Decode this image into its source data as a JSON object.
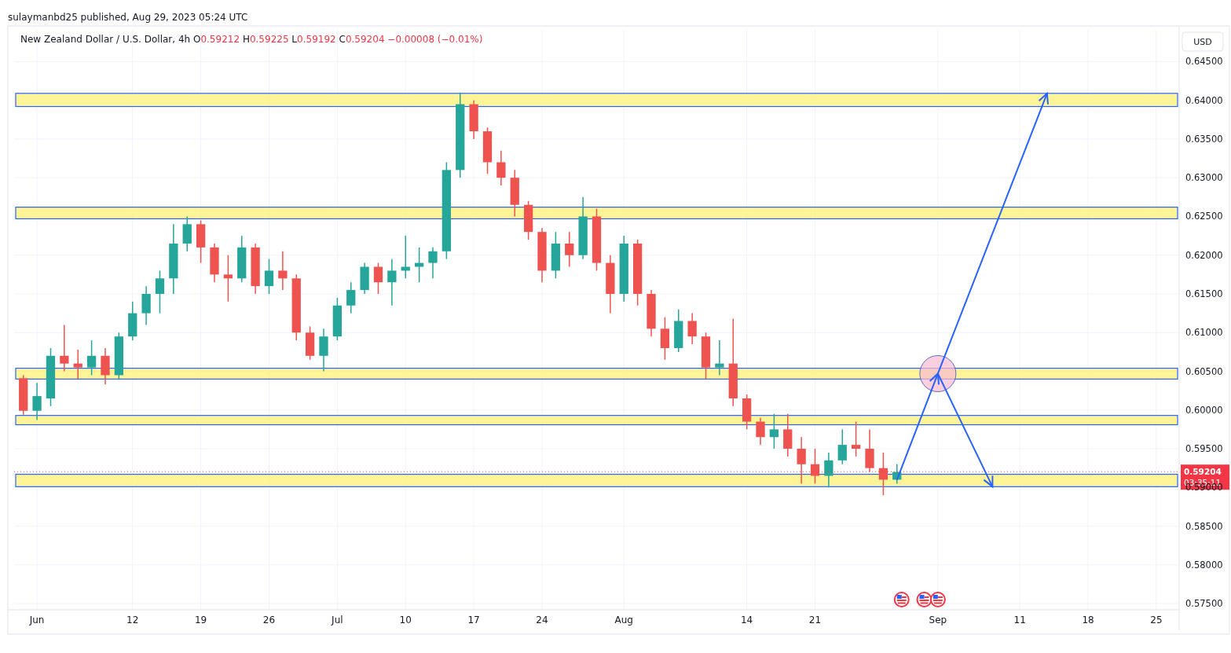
{
  "chart_data": {
    "type": "candlestick",
    "title": "New Zealand Dollar / U.S. Dollar, 4h",
    "subtitle": "O0.59212 H0.59225 L0.59192 C0.59204 −0.00008 (−0.01%)",
    "annotations": [
      "sulaymanbd25 published, Aug 29, 2023 05:24 UTC",
      "USD",
      "03:35:11"
    ],
    "categories": [
      null,
      "Jun",
      null,
      null,
      null,
      null,
      null,
      null,
      "12",
      null,
      null,
      null,
      null,
      "19",
      null,
      null,
      null,
      null,
      "26",
      null,
      null,
      null,
      null,
      "Jul",
      null,
      null,
      null,
      null,
      "10",
      null,
      null,
      null,
      null,
      "17",
      null,
      null,
      null,
      null,
      "24",
      null,
      null,
      null,
      null,
      null,
      "Aug",
      null,
      null,
      null,
      null,
      null,
      null,
      null,
      null,
      "14",
      null,
      null,
      null,
      null,
      "21",
      null,
      null,
      null,
      null,
      null,
      null,
      null,
      null,
      "Sep",
      null,
      null,
      null,
      null,
      null,
      "11",
      null,
      null,
      null,
      null,
      "18",
      null,
      null,
      null,
      null,
      "25",
      null
    ],
    "ohlc": [
      [
        0.6041,
        0.6045,
        0.5994,
        0.5999
      ],
      [
        0.5999,
        0.6035,
        0.5987,
        0.6018
      ],
      [
        0.6015,
        0.608,
        0.6005,
        0.607
      ],
      [
        0.607,
        0.611,
        0.605,
        0.606
      ],
      [
        0.606,
        0.6078,
        0.604,
        0.6055
      ],
      [
        0.6055,
        0.609,
        0.6045,
        0.607
      ],
      [
        0.607,
        0.608,
        0.6033,
        0.6045
      ],
      [
        0.6045,
        0.61,
        0.604,
        0.6095
      ],
      [
        0.6095,
        0.614,
        0.609,
        0.6125
      ],
      [
        0.6125,
        0.616,
        0.611,
        0.615
      ],
      [
        0.615,
        0.618,
        0.6125,
        0.617
      ],
      [
        0.617,
        0.624,
        0.615,
        0.6215
      ],
      [
        0.6215,
        0.625,
        0.6205,
        0.624
      ],
      [
        0.624,
        0.6245,
        0.619,
        0.621
      ],
      [
        0.621,
        0.6215,
        0.6165,
        0.6175
      ],
      [
        0.6175,
        0.62,
        0.614,
        0.617
      ],
      [
        0.617,
        0.6225,
        0.6165,
        0.621
      ],
      [
        0.621,
        0.6215,
        0.615,
        0.616
      ],
      [
        0.616,
        0.6195,
        0.615,
        0.618
      ],
      [
        0.618,
        0.6205,
        0.6155,
        0.617
      ],
      [
        0.617,
        0.6175,
        0.609,
        0.61
      ],
      [
        0.61,
        0.6108,
        0.6065,
        0.607
      ],
      [
        0.607,
        0.6105,
        0.605,
        0.6095
      ],
      [
        0.6095,
        0.6145,
        0.609,
        0.6135
      ],
      [
        0.6135,
        0.6165,
        0.6125,
        0.6155
      ],
      [
        0.6155,
        0.619,
        0.615,
        0.6185
      ],
      [
        0.6185,
        0.619,
        0.615,
        0.6165
      ],
      [
        0.6165,
        0.6195,
        0.6135,
        0.618
      ],
      [
        0.618,
        0.6225,
        0.617,
        0.6185
      ],
      [
        0.6185,
        0.621,
        0.6165,
        0.619
      ],
      [
        0.619,
        0.621,
        0.617,
        0.6205
      ],
      [
        0.6205,
        0.632,
        0.6195,
        0.631
      ],
      [
        0.631,
        0.641,
        0.63,
        0.6395
      ],
      [
        0.6395,
        0.64,
        0.635,
        0.636
      ],
      [
        0.636,
        0.6365,
        0.6305,
        0.632
      ],
      [
        0.632,
        0.6335,
        0.629,
        0.63
      ],
      [
        0.63,
        0.631,
        0.625,
        0.6265
      ],
      [
        0.6265,
        0.627,
        0.622,
        0.623
      ],
      [
        0.623,
        0.6235,
        0.6165,
        0.618
      ],
      [
        0.618,
        0.623,
        0.617,
        0.6215
      ],
      [
        0.6215,
        0.623,
        0.6185,
        0.62
      ],
      [
        0.62,
        0.6275,
        0.6195,
        0.625
      ],
      [
        0.625,
        0.626,
        0.618,
        0.619
      ],
      [
        0.619,
        0.62,
        0.6125,
        0.615
      ],
      [
        0.615,
        0.6225,
        0.614,
        0.6215
      ],
      [
        0.6215,
        0.622,
        0.6135,
        0.615
      ],
      [
        0.615,
        0.6155,
        0.6095,
        0.6105
      ],
      [
        0.6105,
        0.612,
        0.6065,
        0.608
      ],
      [
        0.608,
        0.613,
        0.6075,
        0.6115
      ],
      [
        0.6115,
        0.6125,
        0.6085,
        0.6095
      ],
      [
        0.6095,
        0.61,
        0.604,
        0.6055
      ],
      [
        0.6055,
        0.609,
        0.6045,
        0.606
      ],
      [
        0.606,
        0.6118,
        0.6005,
        0.6015
      ],
      [
        0.6015,
        0.602,
        0.5975,
        0.5985
      ],
      [
        0.5985,
        0.599,
        0.5955,
        0.5965
      ],
      [
        0.5965,
        0.5995,
        0.595,
        0.5975
      ],
      [
        0.5975,
        0.5995,
        0.594,
        0.595
      ],
      [
        0.595,
        0.5965,
        0.5905,
        0.593
      ],
      [
        0.593,
        0.595,
        0.5905,
        0.5915
      ],
      [
        0.5915,
        0.5945,
        0.59,
        0.5935
      ],
      [
        0.5935,
        0.5975,
        0.593,
        0.5955
      ],
      [
        0.5955,
        0.5985,
        0.594,
        0.595
      ],
      [
        0.595,
        0.5975,
        0.592,
        0.5925
      ],
      [
        0.5925,
        0.5945,
        0.589,
        0.591
      ],
      [
        0.591,
        0.593,
        0.5905,
        0.592
      ],
      null,
      null,
      null,
      null,
      null,
      null,
      null,
      null,
      null,
      null,
      null,
      null,
      null,
      null,
      null,
      null,
      null,
      null,
      null,
      null
    ],
    "ylim": [
      0.5742,
      0.6491
    ],
    "yticks": [
      {
        "value": 0.575,
        "label": "0.57500"
      },
      {
        "value": 0.58,
        "label": "0.58000"
      },
      {
        "value": 0.585,
        "label": "0.58500"
      },
      {
        "value": 0.59,
        "label": "0.59000"
      },
      {
        "value": 0.595,
        "label": "0.59500"
      },
      {
        "value": 0.6,
        "label": "0.60000"
      },
      {
        "value": 0.605,
        "label": "0.60500"
      },
      {
        "value": 0.61,
        "label": "0.61000"
      },
      {
        "value": 0.615,
        "label": "0.61500"
      },
      {
        "value": 0.62,
        "label": "0.62000"
      },
      {
        "value": 0.625,
        "label": "0.62500"
      },
      {
        "value": 0.63,
        "label": "0.63000"
      },
      {
        "value": 0.635,
        "label": "0.63500"
      },
      {
        "value": 0.64,
        "label": "0.64000"
      },
      {
        "value": 0.645,
        "label": "0.64500"
      }
    ],
    "bands": [
      {
        "axis": "y",
        "from": 0.6392,
        "to": 0.6409,
        "color": "#fff176"
      },
      {
        "axis": "y",
        "from": 0.6247,
        "to": 0.6262,
        "color": "#fff176"
      },
      {
        "axis": "y",
        "from": 0.604,
        "to": 0.6054,
        "color": "#fff176"
      },
      {
        "axis": "y",
        "from": 0.5981,
        "to": 0.5993,
        "color": "#fff176"
      },
      {
        "axis": "y",
        "from": 0.5901,
        "to": 0.5917,
        "color": "#fff176"
      }
    ],
    "ref_lines": [
      {
        "axis": "y",
        "value": 0.59204,
        "label": "0.59204",
        "color": "#f23645",
        "line_style": "dotted"
      }
    ],
    "grid": true
  }
}
